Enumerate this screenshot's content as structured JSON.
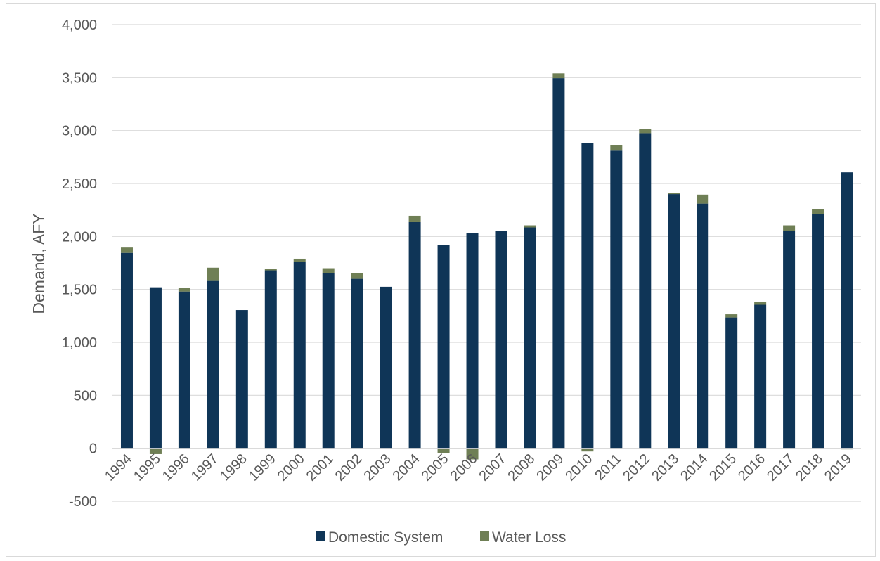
{
  "chart_data": {
    "type": "bar",
    "stacked": true,
    "title": "",
    "xlabel": "",
    "ylabel": "Demand, AFY",
    "ylim": [
      -500,
      4000
    ],
    "ytick_step": 500,
    "ytick_labels": [
      "-500",
      "0",
      "500",
      "1,000",
      "1,500",
      "2,000",
      "2,500",
      "3,000",
      "3,500",
      "4,000"
    ],
    "grid": true,
    "legend_position": "bottom",
    "categories": [
      "1994",
      "1995",
      "1996",
      "1997",
      "1998",
      "1999",
      "2000",
      "2001",
      "2002",
      "2003",
      "2004",
      "2005",
      "2006",
      "2007",
      "2008",
      "2009",
      "2010",
      "2011",
      "2012",
      "2013",
      "2014",
      "2015",
      "2016",
      "2017",
      "2018",
      "2019"
    ],
    "series": [
      {
        "name": "Domestic System",
        "color": "#0f3557",
        "values": [
          1845,
          1520,
          1480,
          1580,
          1305,
          1680,
          1760,
          1655,
          1600,
          1525,
          2135,
          1920,
          2035,
          2050,
          2085,
          3495,
          2880,
          2810,
          2975,
          2400,
          2310,
          1235,
          1355,
          2050,
          2210,
          2605
        ]
      },
      {
        "name": "Water Loss",
        "color": "#6f7f55",
        "values": [
          50,
          -55,
          35,
          125,
          0,
          15,
          30,
          45,
          55,
          0,
          60,
          -45,
          -105,
          0,
          20,
          45,
          -30,
          55,
          40,
          10,
          85,
          30,
          30,
          55,
          50,
          -10
        ]
      }
    ]
  }
}
